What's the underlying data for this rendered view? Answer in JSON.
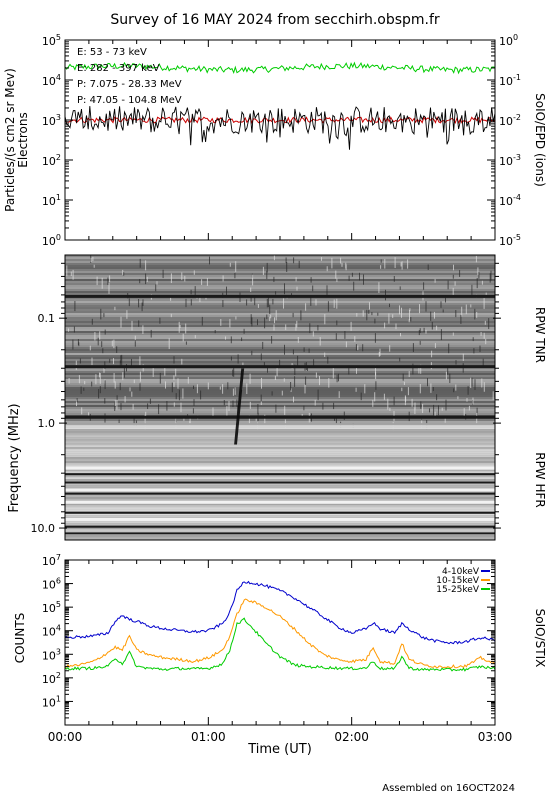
{
  "figure_title": "Survey of 16 MAY 2024 from secchirh.obspm.fr",
  "footer": "Assembled on 16OCT2024",
  "chart_data": [
    {
      "type": "line",
      "panel": "SoIO/EPD",
      "ylabel_left": "Particles/(s cm2 sr Mev)",
      "ylabel_left_sub": "Electrons",
      "ylabel_right": "SoIO/EPD (ions)",
      "ylim_left": [
        1,
        100000
      ],
      "ylim_right": [
        1e-05,
        1
      ],
      "yscale": "log",
      "yticks_left": [
        "10^0",
        "10^1",
        "10^2",
        "10^3",
        "10^4",
        "10^5"
      ],
      "yticks_right": [
        "10^-5",
        "10^-4",
        "10^-3",
        "10^-2",
        "10^-1",
        "10^0"
      ],
      "xlim_hours": [
        0,
        3
      ],
      "legend_position": "top-left",
      "series": [
        {
          "name": "E: 53 - 73 keV",
          "color": "#00cc00",
          "axis": "left",
          "level": 20000,
          "jitter": 0.08
        },
        {
          "name": "E: 282 - 397 keV",
          "color": "#cc0000",
          "axis": "left",
          "level": 1000,
          "jitter": 0.07
        },
        {
          "name": "P: 7.075 - 28.33 MeV",
          "color": "#000000",
          "axis": "left",
          "level": 1000,
          "jitter": 0.35
        },
        {
          "name": "P: 47.05 - 104.8 MeV",
          "color": "#0000cc",
          "axis": "right",
          "level": null,
          "jitter": 0
        }
      ]
    },
    {
      "type": "heatmap",
      "panel": "RPW",
      "ylabel": "Frequency (MHz)",
      "yscale": "log",
      "ylim": [
        0.025,
        13
      ],
      "yticks": [
        "0.1",
        "1.0",
        "10.0"
      ],
      "bands": [
        "RPW TNR",
        "RPW HFR"
      ],
      "band_boundary_mhz": 1.0,
      "burst": {
        "start_hours": 1.18,
        "end_hours": 1.28,
        "freq_range_mhz": [
          0.3,
          1.6
        ]
      },
      "colormap": "grayscale"
    },
    {
      "type": "line",
      "panel": "SoIO/STIX",
      "ylabel": "COUNTS",
      "ylabel_right": "SoIO/STIX",
      "yscale": "log",
      "ylim": [
        1,
        10000000
      ],
      "yticks": [
        "10^1",
        "10^2",
        "10^3",
        "10^4",
        "10^5",
        "10^6",
        "10^7"
      ],
      "xlabel": "Time (UT)",
      "xlim_hours": [
        0,
        3
      ],
      "xticks": [
        "00:00",
        "01:00",
        "02:00",
        "03:00"
      ],
      "legend_position": "top-right",
      "series": [
        {
          "name": "4-10keV",
          "color": "#0000cc",
          "x": [
            0,
            0.1,
            0.2,
            0.3,
            0.35,
            0.4,
            0.45,
            0.5,
            0.6,
            0.7,
            0.8,
            0.9,
            1.0,
            1.1,
            1.15,
            1.2,
            1.25,
            1.3,
            1.4,
            1.5,
            1.6,
            1.7,
            1.8,
            1.9,
            2.0,
            2.1,
            2.15,
            2.2,
            2.3,
            2.35,
            2.4,
            2.5,
            2.6,
            2.7,
            2.8,
            2.9,
            3.0
          ],
          "y": [
            5000,
            5500,
            6000,
            8000,
            25000,
            45000,
            30000,
            25000,
            15000,
            12000,
            10000,
            9000,
            10000,
            20000,
            60000,
            500000,
            1200000,
            1100000,
            800000,
            500000,
            250000,
            100000,
            40000,
            15000,
            8000,
            12000,
            22000,
            12000,
            8000,
            20000,
            12000,
            5000,
            3500,
            3000,
            3500,
            5000,
            4000
          ]
        },
        {
          "name": "10-15keV",
          "color": "#ff9900",
          "x": [
            0,
            0.1,
            0.2,
            0.3,
            0.35,
            0.4,
            0.45,
            0.5,
            0.6,
            0.7,
            0.8,
            0.9,
            1.0,
            1.1,
            1.15,
            1.2,
            1.25,
            1.3,
            1.4,
            1.5,
            1.6,
            1.7,
            1.8,
            1.9,
            2.0,
            2.1,
            2.15,
            2.2,
            2.3,
            2.35,
            2.4,
            2.5,
            2.6,
            2.7,
            2.8,
            2.9,
            3.0
          ],
          "y": [
            300,
            350,
            500,
            1200,
            2000,
            1500,
            6000,
            1500,
            900,
            700,
            600,
            500,
            700,
            1500,
            6000,
            50000,
            200000,
            180000,
            100000,
            40000,
            12000,
            3000,
            1000,
            600,
            500,
            600,
            2000,
            500,
            400,
            3000,
            600,
            350,
            300,
            300,
            320,
            700,
            400
          ]
        },
        {
          "name": "15-25keV",
          "color": "#00cc00",
          "x": [
            0,
            0.1,
            0.2,
            0.3,
            0.35,
            0.4,
            0.45,
            0.5,
            0.6,
            0.7,
            0.8,
            0.9,
            1.0,
            1.1,
            1.15,
            1.2,
            1.25,
            1.3,
            1.4,
            1.5,
            1.6,
            1.7,
            1.8,
            1.9,
            2.0,
            2.1,
            2.15,
            2.2,
            2.3,
            2.35,
            2.4,
            2.5,
            2.6,
            2.7,
            2.8,
            2.9,
            3.0
          ],
          "y": [
            250,
            250,
            260,
            300,
            700,
            400,
            1200,
            300,
            250,
            230,
            250,
            240,
            250,
            400,
            1500,
            20000,
            30000,
            15000,
            3000,
            800,
            350,
            300,
            280,
            260,
            250,
            260,
            500,
            250,
            240,
            800,
            260,
            220,
            230,
            220,
            230,
            300,
            250
          ]
        }
      ]
    }
  ]
}
